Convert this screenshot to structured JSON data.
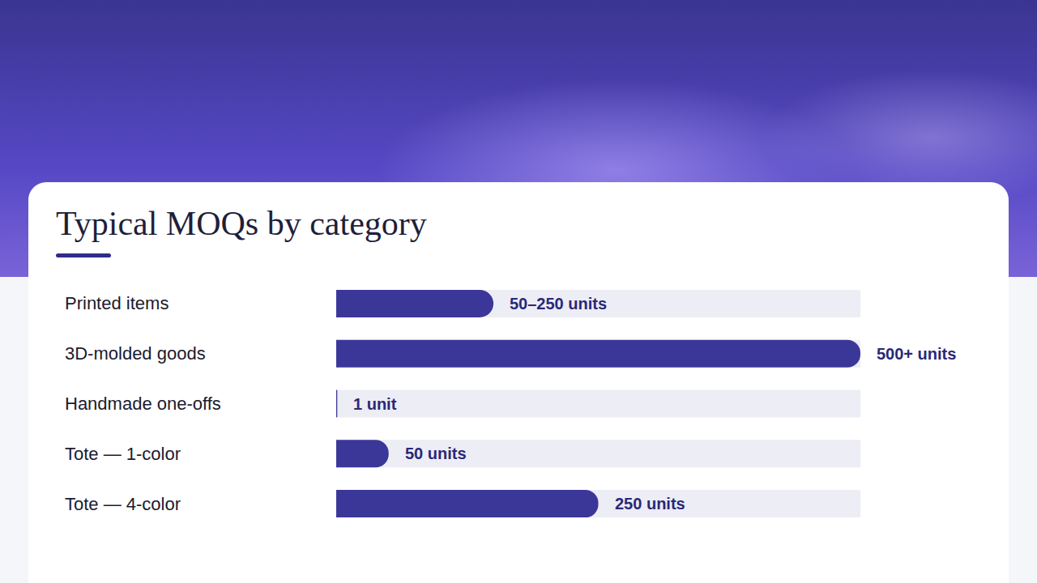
{
  "chart_data": {
    "type": "bar",
    "title": "Typical MOQs by category",
    "orientation": "horizontal",
    "categories": [
      "Printed items",
      "3D-molded goods",
      "Handmade one-offs",
      "Tote — 1-color",
      "Tote — 4-color"
    ],
    "values": [
      150,
      500,
      1,
      50,
      250
    ],
    "value_labels": [
      "50–250 units",
      "500+ units",
      "1 unit",
      "50 units",
      "250 units"
    ],
    "data_labels": true,
    "color": "#3b3799",
    "xlim": [
      0,
      500
    ],
    "grid": false,
    "tick_labels": "y"
  }
}
